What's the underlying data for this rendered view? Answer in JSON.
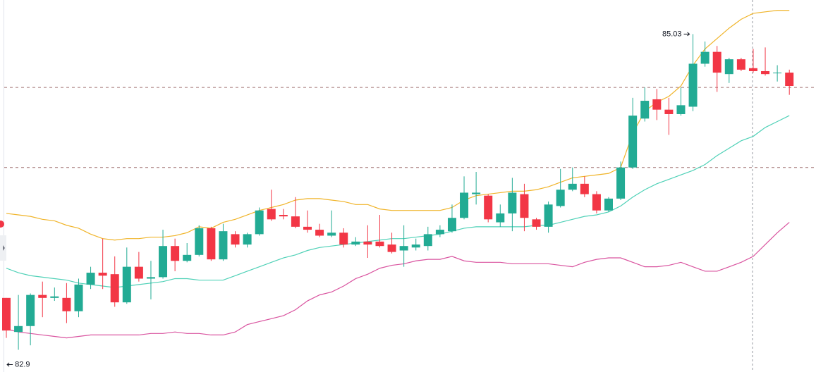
{
  "chart_data": {
    "type": "candlestick",
    "ylim": [
      82.75,
      85.26
    ],
    "up_color": "#22ab94",
    "down_color": "#f23645",
    "open": [
      83.25,
      83.02,
      83.06,
      83.27,
      83.25,
      83.25,
      83.16,
      83.34,
      83.42,
      83.41,
      83.22,
      83.46,
      83.38,
      83.39,
      83.6,
      83.5,
      83.54,
      83.72,
      83.51,
      83.68,
      83.61,
      83.68,
      83.85,
      83.81,
      83.8,
      83.73,
      83.71,
      83.67,
      83.69,
      83.61,
      83.63,
      83.63,
      83.61,
      83.57,
      83.59,
      83.6,
      83.68,
      83.7,
      83.79,
      83.95,
      83.94,
      83.76,
      83.82,
      83.95,
      83.78,
      83.73,
      83.87,
      83.98,
      84.02,
      83.95,
      83.84,
      83.92,
      84.13,
      84.46,
      84.59,
      84.52,
      84.49,
      84.54,
      84.83,
      84.91,
      84.76,
      84.86,
      84.8,
      84.78,
      84.77,
      84.77
    ],
    "high": [
      83.25,
      83.27,
      83.28,
      83.36,
      83.32,
      83.35,
      83.38,
      83.46,
      83.65,
      83.53,
      83.59,
      83.56,
      83.5,
      83.71,
      83.65,
      83.62,
      83.74,
      83.73,
      83.75,
      83.7,
      83.69,
      83.86,
      83.98,
      83.85,
      83.93,
      83.84,
      83.75,
      83.84,
      83.72,
      83.66,
      83.74,
      83.81,
      83.69,
      83.74,
      83.65,
      83.73,
      83.74,
      83.88,
      84.07,
      84.1,
      83.95,
      83.88,
      84.06,
      84.02,
      83.79,
      83.9,
      84.12,
      84.13,
      84.07,
      83.97,
      83.93,
      84.17,
      84.6,
      84.67,
      84.66,
      84.6,
      84.67,
      85.03,
      84.98,
      84.95,
      84.87,
      84.87,
      84.93,
      84.94,
      84.82,
      84.79
    ],
    "low": [
      82.98,
      82.9,
      82.93,
      83.12,
      83.23,
      83.08,
      83.12,
      83.31,
      83.31,
      83.19,
      83.21,
      83.36,
      83.24,
      83.38,
      83.43,
      83.49,
      83.53,
      83.5,
      83.5,
      83.59,
      83.59,
      83.67,
      83.77,
      83.78,
      83.72,
      83.69,
      83.66,
      83.66,
      83.59,
      83.6,
      83.52,
      83.59,
      83.55,
      83.46,
      83.57,
      83.57,
      83.66,
      83.69,
      83.78,
      83.88,
      83.76,
      83.73,
      83.7,
      83.7,
      83.71,
      83.69,
      83.86,
      83.97,
      83.93,
      83.82,
      83.83,
      83.91,
      84.12,
      84.44,
      84.45,
      84.35,
      84.48,
      84.51,
      84.81,
      84.64,
      84.7,
      84.78,
      84.77,
      84.75,
      84.71,
      84.62
    ],
    "close": [
      83.03,
      83.06,
      83.27,
      83.25,
      83.26,
      83.16,
      83.34,
      83.42,
      83.4,
      83.22,
      83.46,
      83.38,
      83.39,
      83.6,
      83.5,
      83.54,
      83.72,
      83.51,
      83.7,
      83.61,
      83.68,
      83.84,
      83.78,
      83.8,
      83.73,
      83.71,
      83.67,
      83.69,
      83.61,
      83.63,
      83.61,
      83.6,
      83.56,
      83.6,
      83.61,
      83.68,
      83.71,
      83.79,
      83.96,
      83.96,
      83.78,
      83.82,
      83.96,
      83.79,
      83.73,
      83.88,
      83.98,
      84.02,
      83.95,
      83.84,
      83.92,
      84.13,
      84.48,
      84.58,
      84.52,
      84.49,
      84.55,
      84.83,
      84.91,
      84.77,
      84.86,
      84.79,
      84.78,
      84.76,
      84.77,
      84.68
    ],
    "bands": [
      {
        "color": "#f0b429",
        "values": [
          83.82,
          83.81,
          83.8,
          83.78,
          83.77,
          83.74,
          83.72,
          83.68,
          83.65,
          83.64,
          83.65,
          83.65,
          83.66,
          83.66,
          83.67,
          83.69,
          83.73,
          83.72,
          83.76,
          83.78,
          83.81,
          83.84,
          83.86,
          83.88,
          83.91,
          83.92,
          83.92,
          83.91,
          83.9,
          83.88,
          83.88,
          83.85,
          83.84,
          83.84,
          83.84,
          83.84,
          83.84,
          83.86,
          83.91,
          83.94,
          83.95,
          83.96,
          83.97,
          83.97,
          83.98,
          84.0,
          84.03,
          84.06,
          84.07,
          84.08,
          84.09,
          84.13,
          84.36,
          84.51,
          84.57,
          84.61,
          84.68,
          84.82,
          84.93,
          85.0,
          85.07,
          85.13,
          85.17,
          85.18,
          85.19,
          85.19
        ]
      },
      {
        "color": "#4fd1b7",
        "values": [
          83.45,
          83.42,
          83.4,
          83.39,
          83.38,
          83.37,
          83.35,
          83.34,
          83.33,
          83.32,
          83.33,
          83.34,
          83.35,
          83.36,
          83.38,
          83.38,
          83.37,
          83.37,
          83.37,
          83.4,
          83.43,
          83.46,
          83.49,
          83.52,
          83.54,
          83.57,
          83.59,
          83.6,
          83.61,
          83.62,
          83.63,
          83.64,
          83.65,
          83.65,
          83.66,
          83.67,
          83.68,
          83.7,
          83.72,
          83.73,
          83.73,
          83.73,
          83.73,
          83.73,
          83.74,
          83.74,
          83.76,
          83.78,
          83.8,
          83.81,
          83.83,
          83.87,
          83.93,
          83.98,
          84.02,
          84.05,
          84.08,
          84.11,
          84.15,
          84.21,
          84.26,
          84.31,
          84.34,
          84.4,
          84.44,
          84.48
        ]
      },
      {
        "color": "#d9539f",
        "values": [
          83.04,
          83.02,
          83.01,
          83.0,
          82.99,
          82.98,
          82.99,
          83.0,
          83.0,
          83.0,
          83.0,
          83.0,
          83.01,
          83.01,
          83.02,
          83.01,
          83.01,
          83.0,
          83.0,
          83.02,
          83.07,
          83.09,
          83.11,
          83.13,
          83.17,
          83.23,
          83.27,
          83.29,
          83.33,
          83.38,
          83.41,
          83.45,
          83.47,
          83.48,
          83.5,
          83.51,
          83.51,
          83.53,
          83.5,
          83.49,
          83.49,
          83.49,
          83.48,
          83.48,
          83.48,
          83.48,
          83.47,
          83.46,
          83.49,
          83.51,
          83.52,
          83.52,
          83.49,
          83.46,
          83.46,
          83.47,
          83.49,
          83.46,
          83.43,
          83.43,
          83.46,
          83.49,
          83.53,
          83.61,
          83.69,
          83.76
        ]
      }
    ],
    "price_lines": [
      84.67,
      84.13
    ],
    "high_label": 85.03,
    "low_label": 82.9
  }
}
